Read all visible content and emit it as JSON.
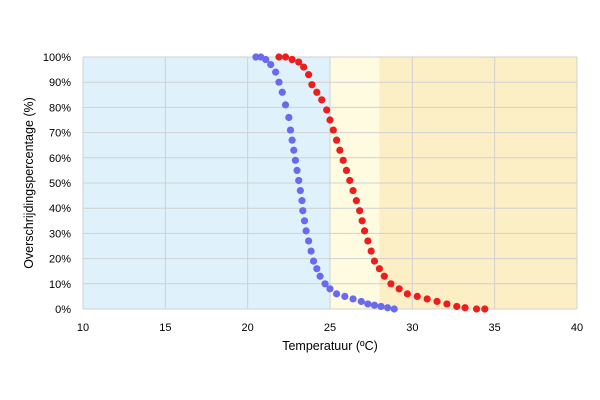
{
  "chart_data": {
    "type": "scatter",
    "title": "",
    "xlabel": "Temperatuur (ºC)",
    "ylabel": "Overschrijdingspercentage (%)",
    "xlim": [
      10,
      40
    ],
    "ylim": [
      0,
      100
    ],
    "x_ticks": [
      "10",
      "15",
      "20",
      "25",
      "30",
      "35",
      "40"
    ],
    "y_ticks": [
      "0%",
      "10%",
      "20%",
      "30%",
      "40%",
      "50%",
      "60%",
      "70%",
      "80%",
      "90%",
      "100%"
    ],
    "grid": true,
    "legend": "none",
    "background_bands": [
      {
        "x_range": [
          10,
          25
        ],
        "color": "#dff2fb"
      },
      {
        "x_range": [
          25,
          28
        ],
        "color": "#fffbe0"
      },
      {
        "x_range": [
          28,
          40
        ],
        "color": "#fcefc6"
      }
    ],
    "series": [
      {
        "color": "#6a6af0",
        "points": [
          [
            20.5,
            100
          ],
          [
            20.8,
            100
          ],
          [
            21.1,
            99
          ],
          [
            21.4,
            97
          ],
          [
            21.7,
            94
          ],
          [
            21.9,
            90
          ],
          [
            22.1,
            86
          ],
          [
            22.3,
            81
          ],
          [
            22.5,
            76
          ],
          [
            22.6,
            71
          ],
          [
            22.7,
            67
          ],
          [
            22.8,
            63
          ],
          [
            22.9,
            59
          ],
          [
            23.0,
            55
          ],
          [
            23.1,
            51
          ],
          [
            23.2,
            47
          ],
          [
            23.3,
            43
          ],
          [
            23.35,
            39
          ],
          [
            23.45,
            35
          ],
          [
            23.55,
            31
          ],
          [
            23.7,
            27
          ],
          [
            23.85,
            23
          ],
          [
            24.0,
            19
          ],
          [
            24.2,
            16
          ],
          [
            24.4,
            13
          ],
          [
            24.7,
            10
          ],
          [
            25.0,
            8
          ],
          [
            25.4,
            6
          ],
          [
            25.9,
            5
          ],
          [
            26.4,
            4
          ],
          [
            26.9,
            3
          ],
          [
            27.3,
            2
          ],
          [
            27.7,
            1.5
          ],
          [
            28.1,
            1
          ],
          [
            28.5,
            0.5
          ],
          [
            28.9,
            0
          ]
        ]
      },
      {
        "color": "#ee1c1c",
        "points": [
          [
            21.9,
            100
          ],
          [
            22.3,
            100
          ],
          [
            22.7,
            99
          ],
          [
            23.1,
            98
          ],
          [
            23.4,
            96
          ],
          [
            23.7,
            93
          ],
          [
            23.9,
            89
          ],
          [
            24.2,
            86
          ],
          [
            24.5,
            83
          ],
          [
            24.8,
            79
          ],
          [
            25.0,
            75
          ],
          [
            25.2,
            71
          ],
          [
            25.4,
            67
          ],
          [
            25.6,
            63
          ],
          [
            25.8,
            59
          ],
          [
            26.0,
            55
          ],
          [
            26.2,
            51
          ],
          [
            26.4,
            47
          ],
          [
            26.6,
            43
          ],
          [
            26.8,
            39
          ],
          [
            26.95,
            35
          ],
          [
            27.1,
            31
          ],
          [
            27.3,
            27
          ],
          [
            27.5,
            23
          ],
          [
            27.7,
            19
          ],
          [
            28.0,
            16
          ],
          [
            28.3,
            13
          ],
          [
            28.7,
            10
          ],
          [
            29.2,
            8
          ],
          [
            29.7,
            6
          ],
          [
            30.3,
            5
          ],
          [
            30.9,
            4
          ],
          [
            31.5,
            3
          ],
          [
            32.1,
            2
          ],
          [
            32.7,
            1
          ],
          [
            33.2,
            0.5
          ],
          [
            33.9,
            0
          ],
          [
            34.4,
            0
          ]
        ]
      }
    ]
  }
}
